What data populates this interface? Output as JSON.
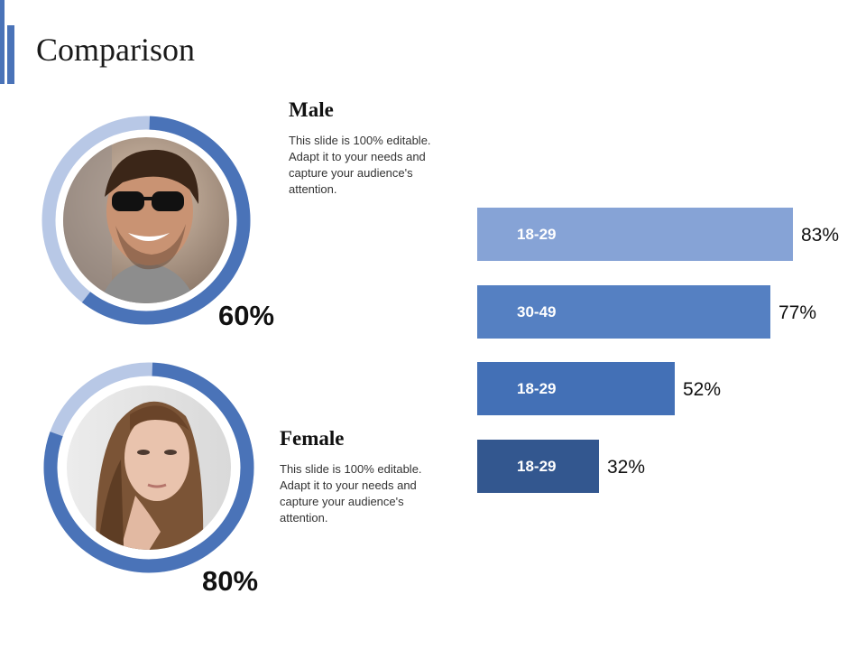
{
  "title": "Comparison",
  "colors": {
    "accent": "#4a73b8",
    "ring_light": "#b8c8e6",
    "ring_dark": "#4a73b8",
    "bar_colors": [
      "#86a3d6",
      "#5580c2",
      "#4370b6",
      "#33578f"
    ]
  },
  "male": {
    "heading": "Male",
    "body": [
      "This slide is 100% editable.",
      "Adapt it to your needs and",
      "capture your audience's",
      "attention."
    ],
    "percent_label": "60%",
    "percent_value": 60,
    "photo_icon": "male-portrait-icon"
  },
  "female": {
    "heading": "Female",
    "body": [
      "This slide is 100% editable.",
      "Adapt it to your needs and",
      "capture your audience's",
      "attention."
    ],
    "percent_label": "80%",
    "percent_value": 80,
    "photo_icon": "female-portrait-icon"
  },
  "chart_data": {
    "type": "bar",
    "orientation": "horizontal",
    "title": "",
    "xlabel": "",
    "ylabel": "",
    "xlim": [
      0,
      100
    ],
    "categories": [
      "18-29",
      "30-49",
      "18-29",
      "18-29"
    ],
    "values": [
      83,
      77,
      52,
      32
    ],
    "value_labels": [
      "83%",
      "77%",
      "52%",
      "32%"
    ],
    "grid": false,
    "legend": "none"
  }
}
